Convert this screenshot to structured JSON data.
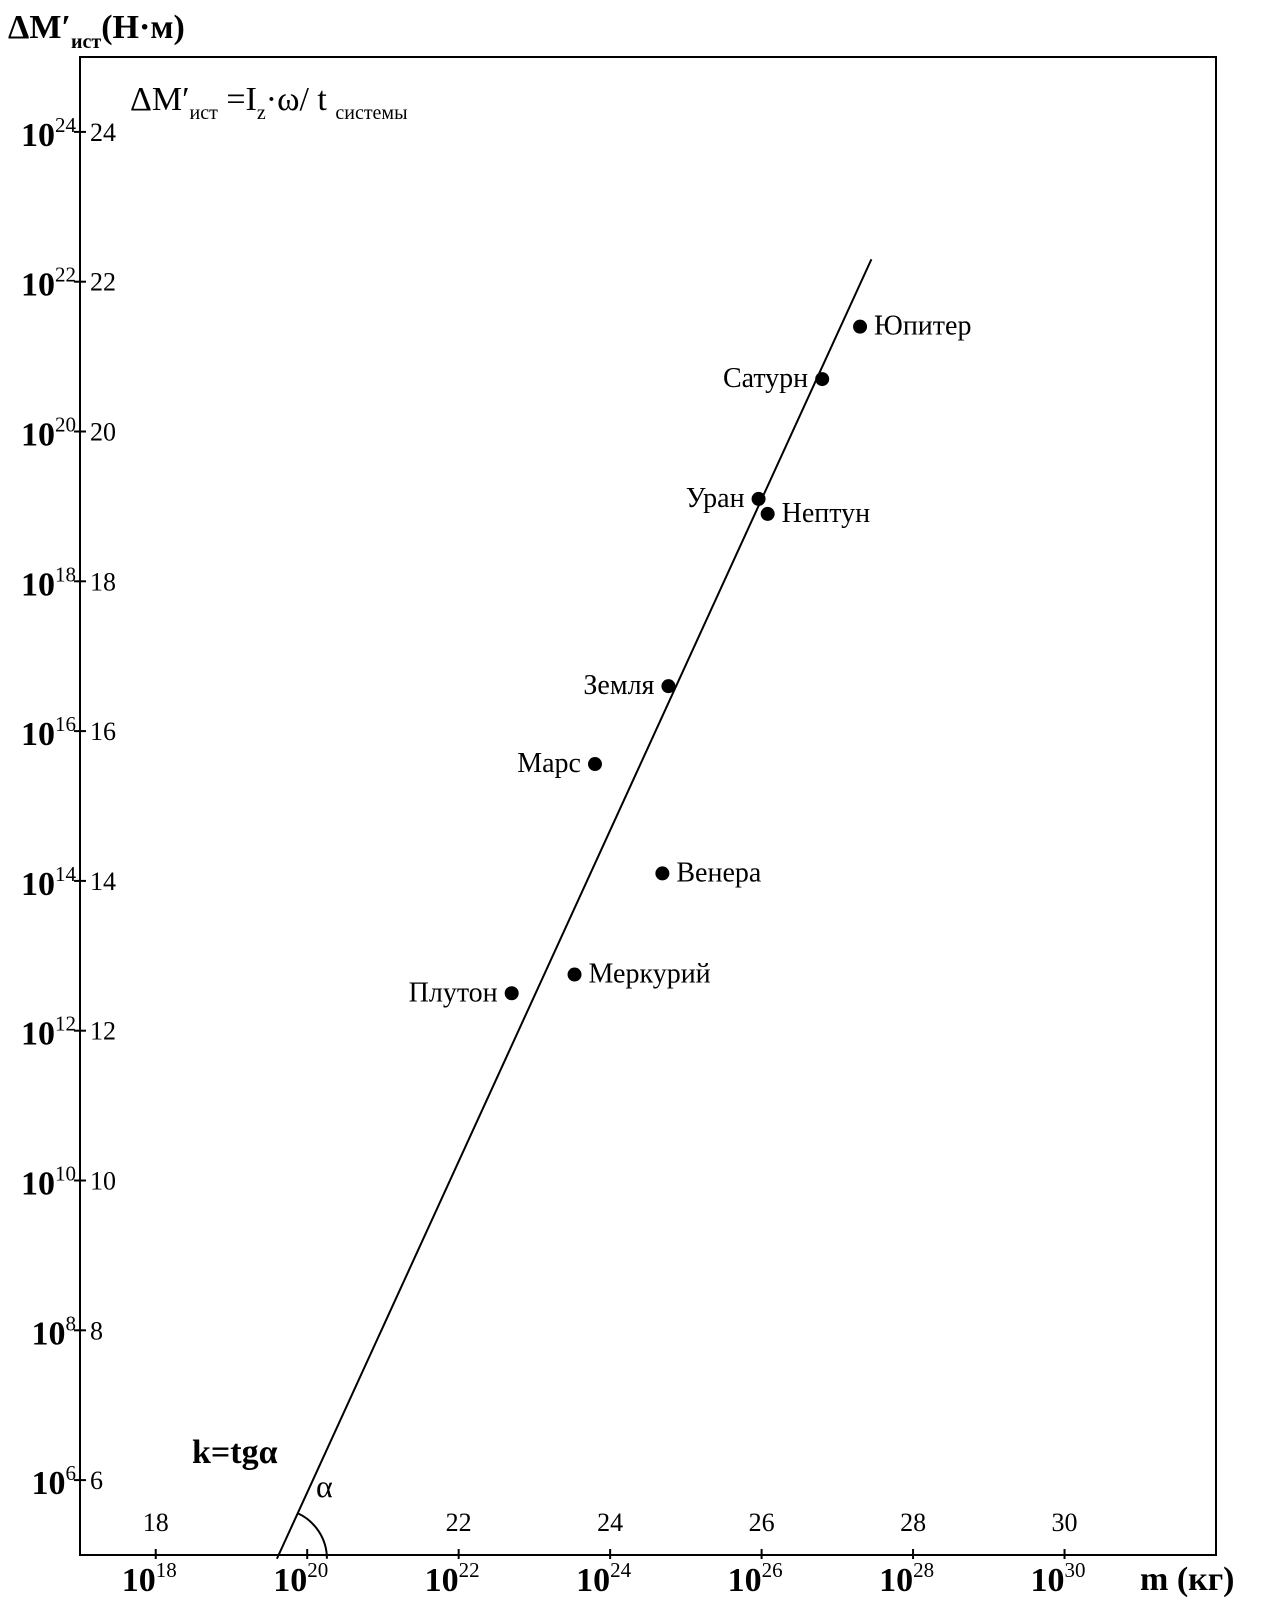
{
  "chart_data": {
    "type": "scatter",
    "ylabel": {
      "main": "ΔM′",
      "sub": "ист",
      "unit": "(Н·м)"
    },
    "xlabel": "m (кг)",
    "formula": {
      "lhs": "ΔM′",
      "lhs_sub": "ист",
      "eq": " =I",
      "i_sub": "z",
      "mid": "·ω/ t ",
      "t_sub": "системы"
    },
    "slope_label": "k=tgα",
    "angle_label": "α",
    "xlim": [
      17,
      32
    ],
    "ylim": [
      5,
      25
    ],
    "log_scale": {
      "x": true,
      "y": true
    },
    "grid": false,
    "x_ticks_small": [
      18,
      22,
      24,
      26,
      28,
      30
    ],
    "x_ticks_big": [
      {
        "base": "10",
        "exp": "18",
        "value": 18
      },
      {
        "base": "10",
        "exp": "20",
        "value": 20
      },
      {
        "base": "10",
        "exp": "22",
        "value": 22
      },
      {
        "base": "10",
        "exp": "24",
        "value": 24
      },
      {
        "base": "10",
        "exp": "26",
        "value": 26
      },
      {
        "base": "10",
        "exp": "28",
        "value": 28
      },
      {
        "base": "10",
        "exp": "30",
        "value": 30
      }
    ],
    "y_ticks_small": [
      6,
      8,
      10,
      12,
      14,
      16,
      18,
      20,
      22,
      24
    ],
    "y_ticks_big": [
      {
        "base": "10",
        "exp": "6",
        "value": 6
      },
      {
        "base": "10",
        "exp": "8",
        "value": 8
      },
      {
        "base": "10",
        "exp": "10",
        "value": 10
      },
      {
        "base": "10",
        "exp": "12",
        "value": 12
      },
      {
        "base": "10",
        "exp": "14",
        "value": 14
      },
      {
        "base": "10",
        "exp": "16",
        "value": 16
      },
      {
        "base": "10",
        "exp": "18",
        "value": 18
      },
      {
        "base": "10",
        "exp": "20",
        "value": 20
      },
      {
        "base": "10",
        "exp": "22",
        "value": 22
      },
      {
        "base": "10",
        "exp": "24",
        "value": 24
      }
    ],
    "points": [
      {
        "name": "Юпитер",
        "x": 27.3,
        "y": 21.4,
        "label_side": "right"
      },
      {
        "name": "Сатурн",
        "x": 26.8,
        "y": 20.7,
        "label_side": "left"
      },
      {
        "name": "Уран",
        "x": 25.96,
        "y": 19.1,
        "label_side": "left"
      },
      {
        "name": "Нептун",
        "x": 26.08,
        "y": 18.9,
        "label_side": "right"
      },
      {
        "name": "Земля",
        "x": 24.77,
        "y": 16.6,
        "label_side": "left"
      },
      {
        "name": "Марс",
        "x": 23.8,
        "y": 15.56,
        "label_side": "left"
      },
      {
        "name": "Венера",
        "x": 24.69,
        "y": 14.1,
        "label_side": "right"
      },
      {
        "name": "Меркурий",
        "x": 23.53,
        "y": 12.75,
        "label_side": "right"
      },
      {
        "name": "Плутон",
        "x": 22.7,
        "y": 12.5,
        "label_side": "left"
      }
    ],
    "fit_line": {
      "x": [
        19.6,
        27.45
      ],
      "y": [
        4.95,
        22.3
      ]
    }
  }
}
